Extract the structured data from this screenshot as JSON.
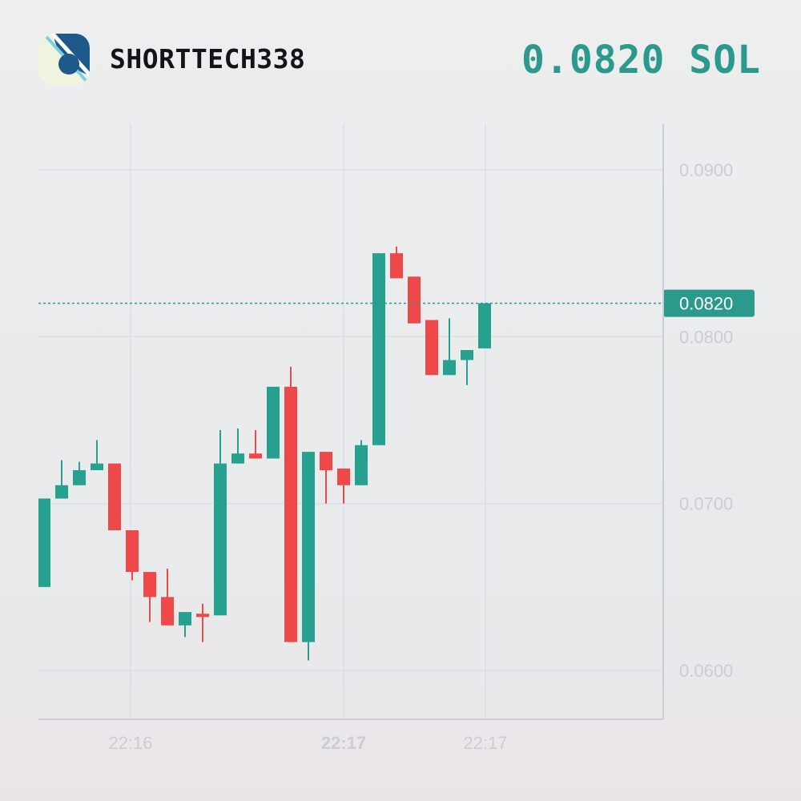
{
  "header": {
    "token_name": "SHORTTECH338",
    "price_display": "0.0820 SOL",
    "logo_icon": "token-logo-icon"
  },
  "colors": {
    "up": "#26a08f",
    "down": "#ef4848",
    "grid": "#d9dee8",
    "axis": "#c8ced8",
    "tick_text": "#c9ced6",
    "price_accent": "#2b9a8c"
  },
  "chart_data": {
    "type": "candlestick",
    "title": "",
    "xlabel": "",
    "ylabel": "",
    "ylim": [
      0.057,
      0.0927
    ],
    "grid": true,
    "y_ticks": [
      "0.0600",
      "0.0700",
      "0.0800",
      "0.0900"
    ],
    "x_ticks": [
      {
        "label": "22:16",
        "bold": false
      },
      {
        "label": "22:17",
        "bold": true
      },
      {
        "label": "22:17",
        "bold": false
      }
    ],
    "current_price": 0.082,
    "current_price_label": "0.0820",
    "candles": [
      {
        "o": 0.065,
        "h": 0.0703,
        "l": 0.065,
        "c": 0.0703
      },
      {
        "o": 0.0703,
        "h": 0.0726,
        "l": 0.0703,
        "c": 0.0711
      },
      {
        "o": 0.0711,
        "h": 0.0725,
        "l": 0.0711,
        "c": 0.072
      },
      {
        "o": 0.072,
        "h": 0.0738,
        "l": 0.072,
        "c": 0.0724
      },
      {
        "o": 0.0724,
        "h": 0.0724,
        "l": 0.0684,
        "c": 0.0684
      },
      {
        "o": 0.0684,
        "h": 0.0684,
        "l": 0.0654,
        "c": 0.0659
      },
      {
        "o": 0.0659,
        "h": 0.0659,
        "l": 0.0629,
        "c": 0.0644
      },
      {
        "o": 0.0644,
        "h": 0.0661,
        "l": 0.0627,
        "c": 0.0627
      },
      {
        "o": 0.0627,
        "h": 0.0635,
        "l": 0.062,
        "c": 0.0635
      },
      {
        "o": 0.0634,
        "h": 0.064,
        "l": 0.0617,
        "c": 0.0632
      },
      {
        "o": 0.0633,
        "h": 0.0744,
        "l": 0.0633,
        "c": 0.0724
      },
      {
        "o": 0.0724,
        "h": 0.0745,
        "l": 0.0724,
        "c": 0.073
      },
      {
        "o": 0.073,
        "h": 0.0744,
        "l": 0.0727,
        "c": 0.0727
      },
      {
        "o": 0.0727,
        "h": 0.077,
        "l": 0.0727,
        "c": 0.077
      },
      {
        "o": 0.077,
        "h": 0.0782,
        "l": 0.0617,
        "c": 0.0617
      },
      {
        "o": 0.0617,
        "h": 0.0731,
        "l": 0.0606,
        "c": 0.0731
      },
      {
        "o": 0.0731,
        "h": 0.0731,
        "l": 0.07,
        "c": 0.072
      },
      {
        "o": 0.0721,
        "h": 0.0721,
        "l": 0.07,
        "c": 0.0711
      },
      {
        "o": 0.0711,
        "h": 0.0738,
        "l": 0.0711,
        "c": 0.0735
      },
      {
        "o": 0.0735,
        "h": 0.085,
        "l": 0.0735,
        "c": 0.085
      },
      {
        "o": 0.085,
        "h": 0.0854,
        "l": 0.0835,
        "c": 0.0835
      },
      {
        "o": 0.0836,
        "h": 0.0836,
        "l": 0.0808,
        "c": 0.0808
      },
      {
        "o": 0.081,
        "h": 0.081,
        "l": 0.0777,
        "c": 0.0777
      },
      {
        "o": 0.0777,
        "h": 0.0811,
        "l": 0.0777,
        "c": 0.0786
      },
      {
        "o": 0.0786,
        "h": 0.0792,
        "l": 0.0771,
        "c": 0.0792
      },
      {
        "o": 0.0793,
        "h": 0.082,
        "l": 0.0793,
        "c": 0.082
      }
    ]
  }
}
